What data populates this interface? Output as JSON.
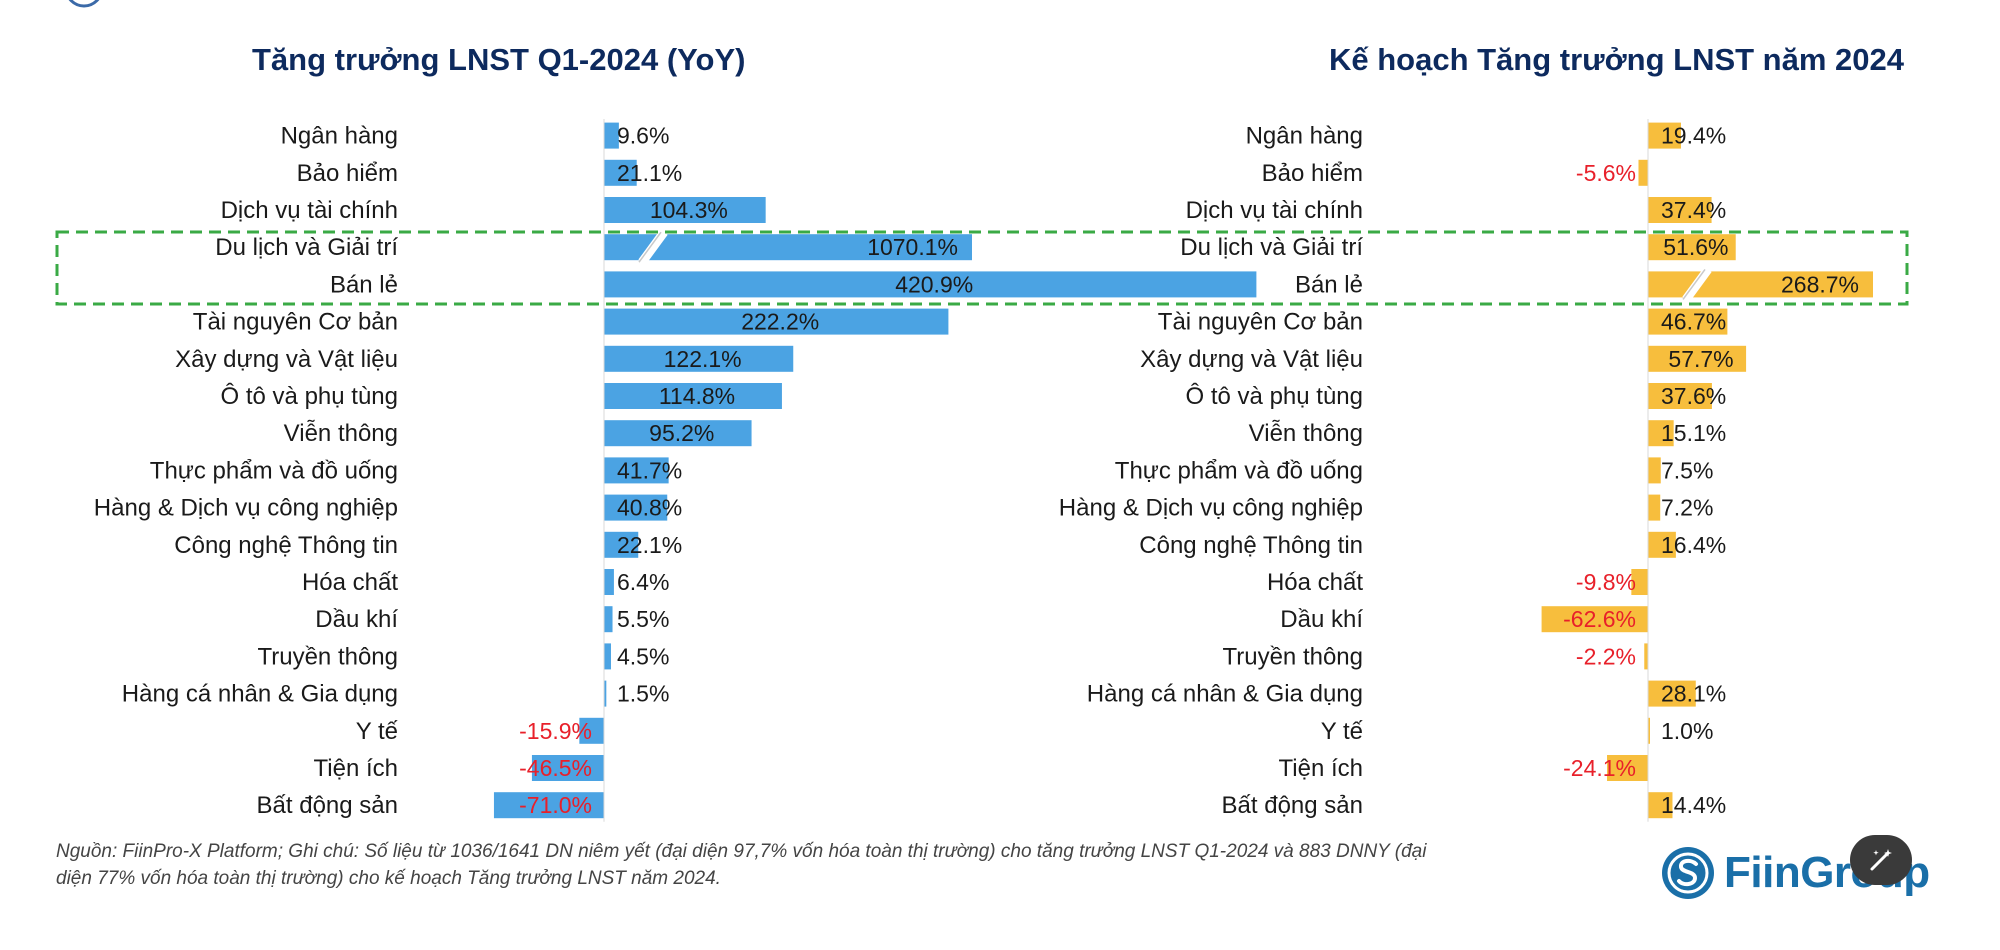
{
  "chart_data": [
    {
      "type": "bar",
      "orientation": "horizontal",
      "title": "Tăng trưởng LNST Q1-2024 (YoY)",
      "categories": [
        "Ngân hàng",
        "Bảo hiểm",
        "Dịch vụ tài chính",
        "Du lịch và Giải trí",
        "Bán lẻ",
        "Tài nguyên Cơ bản",
        "Xây dựng và Vật liệu",
        "Ô tô và phụ tùng",
        "Viễn thông",
        "Thực phẩm và đồ uống",
        "Hàng & Dịch vụ công nghiệp",
        "Công nghệ Thông tin",
        "Hóa chất",
        "Dầu khí",
        "Truyền thông",
        "Hàng cá nhân & Gia dụng",
        "Y tế",
        "Tiện ích",
        "Bất động sản"
      ],
      "values": [
        9.6,
        21.1,
        104.3,
        1070.1,
        420.9,
        222.2,
        122.1,
        114.8,
        95.2,
        41.7,
        40.8,
        22.1,
        6.4,
        5.5,
        4.5,
        1.5,
        -15.9,
        -46.5,
        -71.0
      ],
      "labels": [
        "9.6%",
        "21.1%",
        "104.3%",
        "1070.1%",
        "420.9%",
        "222.2%",
        "122.1%",
        "114.8%",
        "95.2%",
        "41.7%",
        "40.8%",
        "22.1%",
        "6.4%",
        "5.5%",
        "4.5%",
        "1.5%",
        "-15.9%",
        "-46.5%",
        "-71.0%"
      ],
      "broken_axis_bars": [
        "Du lịch và Giải trí"
      ],
      "highlighted_categories": [
        "Du lịch và Giải trí",
        "Bán lẻ"
      ],
      "bar_color": "#4ba3e3",
      "negative_label_color": "#e8202a"
    },
    {
      "type": "bar",
      "orientation": "horizontal",
      "title": "Kế hoạch Tăng trưởng LNST năm 2024",
      "categories": [
        "Ngân hàng",
        "Bảo hiểm",
        "Dịch vụ tài chính",
        "Du lịch và Giải trí",
        "Bán lẻ",
        "Tài nguyên Cơ bản",
        "Xây dựng và Vật liệu",
        "Ô tô và phụ tùng",
        "Viễn thông",
        "Thực phẩm và đồ uống",
        "Hàng & Dịch vụ công nghiệp",
        "Công nghệ Thông tin",
        "Hóa chất",
        "Dầu khí",
        "Truyền thông",
        "Hàng cá nhân & Gia dụng",
        "Y tế",
        "Tiện ích",
        "Bất động sản"
      ],
      "values": [
        19.4,
        -5.6,
        37.4,
        51.6,
        268.7,
        46.7,
        57.7,
        37.6,
        15.1,
        7.5,
        7.2,
        16.4,
        -9.8,
        -62.6,
        -2.2,
        28.1,
        1.0,
        -24.1,
        14.4
      ],
      "labels": [
        "19.4%",
        "-5.6%",
        "37.4%",
        "51.6%",
        "268.7%",
        "46.7%",
        "57.7%",
        "37.6%",
        "15.1%",
        "7.5%",
        "7.2%",
        "16.4%",
        "-9.8%",
        "-62.6%",
        "-2.2%",
        "28.1%",
        "1.0%",
        "-24.1%",
        "14.4%"
      ],
      "broken_axis_bars": [
        "Bán lẻ"
      ],
      "highlighted_categories": [
        "Du lịch và Giải trí",
        "Bán lẻ"
      ],
      "bar_color": "#f7be3d",
      "negative_label_color": "#e8202a"
    }
  ],
  "highlight_color": "#3aaa45",
  "footnote": "Nguồn: FiinPro-X Platform; Ghi chú: Số liệu từ 1036/1641 DN niêm yết (đại diện 97,7% vốn hóa toàn thị trường) cho tăng trưởng LNST Q1-2024 và 883 DNNY (đại diện 77% vốn hóa toàn thị trường) cho kế hoạch Tăng trưởng LNST năm 2024.",
  "brand": {
    "name": "FiinGroup",
    "color": "#1a6fa8"
  },
  "icons": {
    "logo": "fiingroup-logo-icon",
    "edit": "magic-edit-icon"
  }
}
